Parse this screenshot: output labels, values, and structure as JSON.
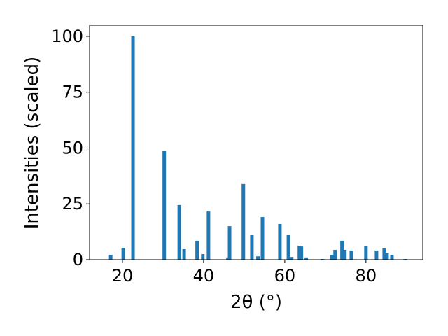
{
  "chart_data": {
    "type": "bar",
    "x_label": "2θ (°)",
    "y_label": "Intensities (scaled)",
    "x": [
      17.1,
      20.2,
      22.6,
      30.3,
      34.0,
      35.2,
      38.4,
      39.8,
      41.2,
      46.0,
      46.4,
      49.8,
      51.9,
      53.4,
      54.5,
      58.8,
      60.9,
      61.7,
      63.6,
      64.1,
      65.3,
      69.3,
      71.6,
      72.4,
      74.1,
      74.8,
      76.4,
      80.0,
      82.6,
      84.5,
      85.2,
      86.4,
      89.7
    ],
    "values": [
      2.2,
      5.3,
      100,
      48.6,
      24.5,
      4.7,
      8.5,
      2.5,
      21.6,
      1.0,
      15.0,
      33.9,
      11.0,
      1.5,
      19.1,
      16.0,
      11.3,
      1.2,
      6.3,
      5.9,
      1.0,
      0.3,
      2.2,
      4.4,
      8.5,
      4.4,
      4.1,
      6.0,
      4.1,
      5.0,
      3.1,
      2.2,
      0.3
    ],
    "color": "#1f77b4",
    "xlim": [
      11.9,
      94.0
    ],
    "xticks": [
      20,
      40,
      60,
      80
    ],
    "ylim": [
      0,
      105
    ],
    "yticks": [
      0,
      25,
      50,
      75,
      100
    ]
  }
}
